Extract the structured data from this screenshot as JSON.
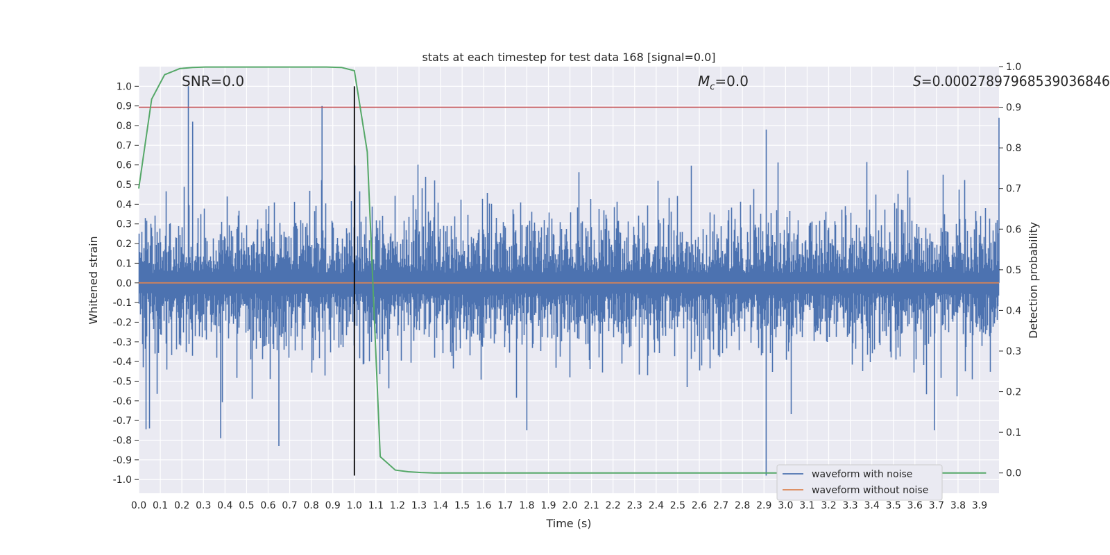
{
  "chart_data": {
    "type": "line",
    "title": "stats at each timestep for test data 168 [signal=0.0]",
    "xlabel": "Time (s)",
    "ylabel_left": "Whitened strain",
    "ylabel_right": "Detection probability",
    "xlim": [
      0.0,
      3.99
    ],
    "ylim_left": [
      -1.07,
      1.1
    ],
    "ylim_right": [
      -0.05,
      1.0
    ],
    "x_ticks": [
      "0.0",
      "0.1",
      "0.2",
      "0.3",
      "0.4",
      "0.5",
      "0.6",
      "0.7",
      "0.8",
      "0.9",
      "1.0",
      "1.1",
      "1.2",
      "1.3",
      "1.4",
      "1.5",
      "1.6",
      "1.7",
      "1.8",
      "1.9",
      "2.0",
      "2.1",
      "2.2",
      "2.3",
      "2.4",
      "2.5",
      "2.6",
      "2.7",
      "2.8",
      "2.9",
      "3.0",
      "3.1",
      "3.2",
      "3.3",
      "3.4",
      "3.5",
      "3.6",
      "3.7",
      "3.8",
      "3.9"
    ],
    "y_ticks_left": [
      "-1.0",
      "-0.9",
      "-0.8",
      "-0.7",
      "-0.6",
      "-0.5",
      "-0.4",
      "-0.3",
      "-0.2",
      "-0.1",
      "0.0",
      "0.1",
      "0.2",
      "0.3",
      "0.4",
      "0.5",
      "0.6",
      "0.7",
      "0.8",
      "0.9",
      "1.0"
    ],
    "y_ticks_right": [
      "0.0",
      "0.1",
      "0.2",
      "0.3",
      "0.4",
      "0.5",
      "0.6",
      "0.7",
      "0.8",
      "0.9",
      "1.0"
    ],
    "grid": true,
    "legend_position": "lower-right",
    "annotations": {
      "snr": "SNR=0.0",
      "mc_symbol": "M",
      "mc_sub": "c",
      "mc_value": "=0.0",
      "s_symbol": "S",
      "s_value": "=0.00027897968539036846"
    },
    "series": [
      {
        "name": "waveform with noise",
        "color": "#4c72b0",
        "axis": "left",
        "kind": "noise",
        "peak_abs": 1.0,
        "sample_rate_hz": 1024
      },
      {
        "name": "waveform without noise",
        "color": "#dd8452",
        "axis": "left",
        "x": [
          0.0,
          3.99
        ],
        "y": [
          0.0,
          0.0
        ]
      },
      {
        "name": "detection probability",
        "color": "#55a868",
        "axis": "right",
        "x": [
          0.0,
          0.06,
          0.12,
          0.19,
          0.25,
          0.31,
          0.37,
          0.44,
          0.5,
          0.56,
          0.62,
          0.69,
          0.75,
          0.81,
          0.87,
          0.94,
          1.0,
          1.06,
          1.12,
          1.19,
          1.25,
          1.31,
          1.37,
          1.5,
          2.0,
          2.5,
          3.0,
          3.5,
          3.93
        ],
        "y": [
          0.7,
          0.92,
          0.98,
          0.995,
          0.998,
          0.999,
          0.999,
          0.999,
          0.999,
          0.999,
          0.999,
          0.999,
          0.999,
          0.999,
          0.999,
          0.998,
          0.99,
          0.79,
          0.04,
          0.007,
          0.003,
          0.001,
          0.0,
          0.0,
          0.0,
          0.0,
          0.0,
          0.0,
          0.0
        ]
      }
    ],
    "reference_lines": [
      {
        "orientation": "horizontal",
        "axis": "right",
        "value": 0.9,
        "color": "#c44e52"
      },
      {
        "orientation": "vertical",
        "x": 1.0,
        "y_range_left": [
          -0.98,
          1.0
        ],
        "color": "#000000"
      }
    ],
    "colors": {
      "background": "#eaeaf2",
      "grid": "#ffffff"
    }
  }
}
